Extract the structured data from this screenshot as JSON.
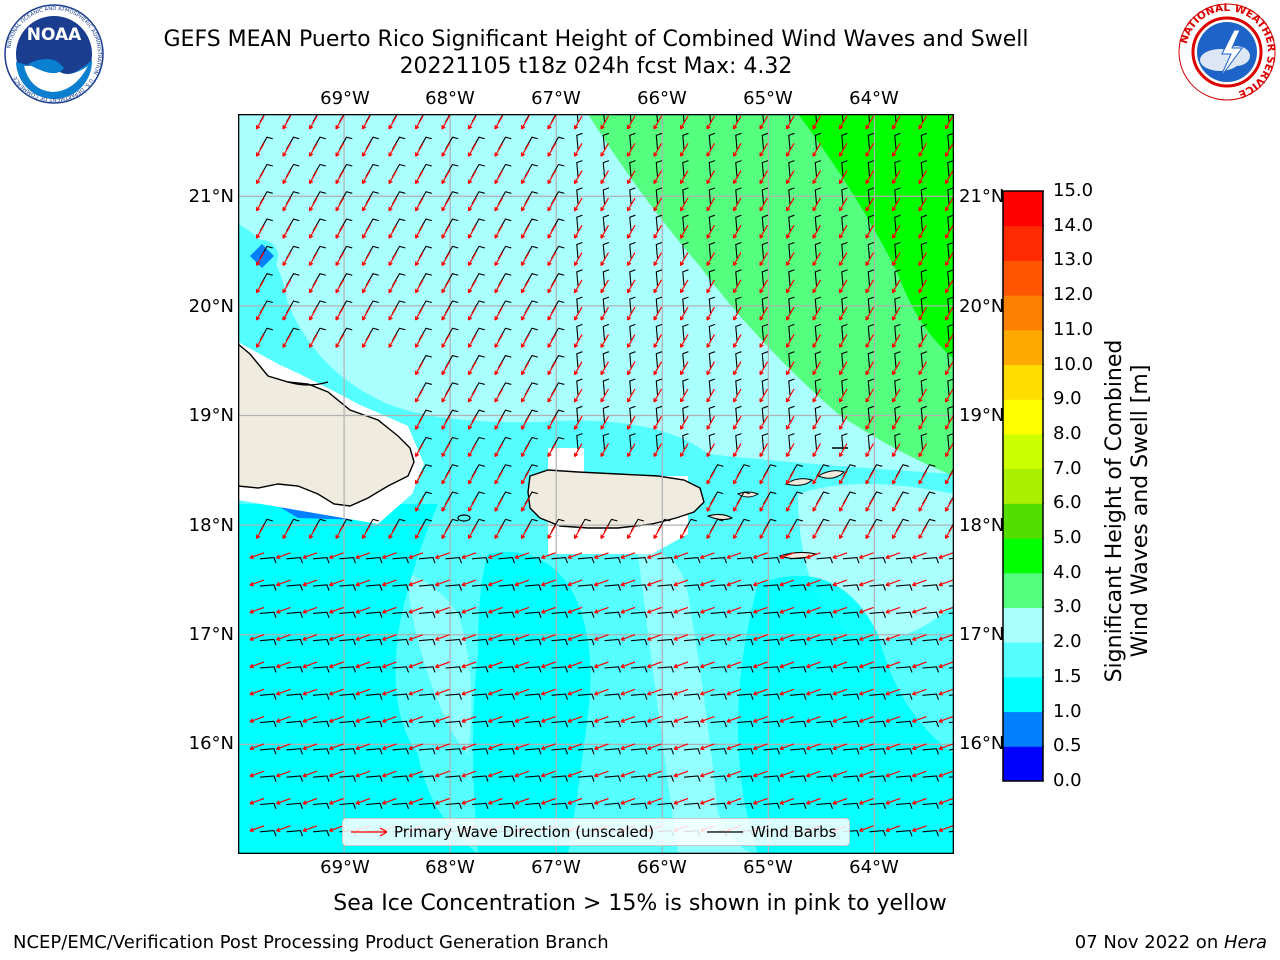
{
  "header": {
    "title_line1": "GEFS MEAN Puerto Rico Significant Height of Combined Wind Waves and Swell",
    "title_line2": "20221105 t18z 024h fcst   Max: 4.32"
  },
  "logos": {
    "noaa": "NOAA",
    "noaa_ring": "NATIONAL OCEANIC AND ATMOSPHERIC ADMINISTRATION · U.S. DEPARTMENT OF COMMERCE",
    "nws_ring": "NATIONAL WEATHER SERVICE"
  },
  "map": {
    "extent": {
      "lon_min": -70.0,
      "lon_max": -63.25,
      "lat_min": 15.0,
      "lat_max": 21.75
    },
    "lon_ticks": [
      "69°W",
      "68°W",
      "67°W",
      "66°W",
      "65°W",
      "64°W"
    ],
    "lat_ticks": [
      "21°N",
      "20°N",
      "19°N",
      "18°N",
      "17°N",
      "16°N"
    ],
    "land_color": "#efebde",
    "grid_color": "#b0b0b0",
    "wind_barb_color": "#000000",
    "wave_arrow_color": "#ff0000",
    "legend": {
      "wave_label": "Primary Wave Direction (unscaled)",
      "barb_label": "Wind Barbs"
    }
  },
  "colorbar": {
    "label_line1": "Significant Height of Combined",
    "label_line2": "Wind Waves and Swell [m]",
    "levels": [
      "0.0",
      "0.5",
      "1.0",
      "1.5",
      "2.0",
      "3.0",
      "4.0",
      "5.0",
      "6.0",
      "7.0",
      "8.0",
      "9.0",
      "10.0",
      "11.0",
      "12.0",
      "13.0",
      "14.0",
      "15.0"
    ],
    "colors": [
      "#0000ff",
      "#0080ff",
      "#00ffff",
      "#55ffff",
      "#aaffff",
      "#55ff80",
      "#00ff00",
      "#55dd00",
      "#aaee00",
      "#ccff00",
      "#ffff00",
      "#ffdd00",
      "#ffaa00",
      "#ff8000",
      "#ff5500",
      "#ff2b00",
      "#ff0000"
    ]
  },
  "footer": {
    "ice_note": "Sea Ice Concentration > 15% is shown in pink to yellow",
    "credit": "NCEP/EMC/Verification Post Processing Product Generation Branch",
    "date": "07 Nov 2022 on ",
    "host": "Hera"
  }
}
